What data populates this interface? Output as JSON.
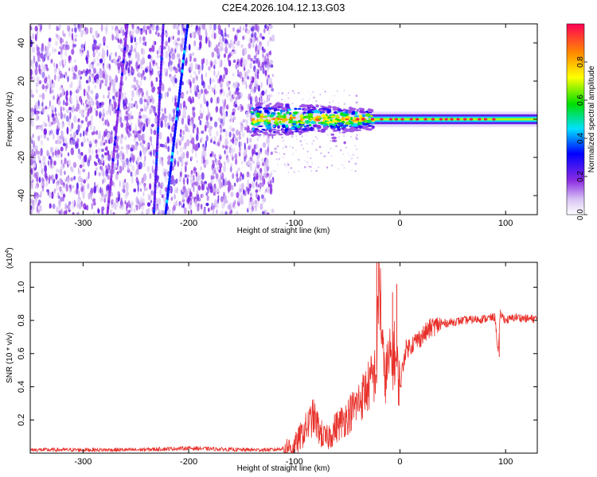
{
  "title": "C2E4.2026.104.12.13.G03",
  "chart_data": [
    {
      "type": "heatmap",
      "xlabel": "Height of straight line (km)",
      "ylabel": "Frequency (Hz)",
      "xlim": [
        -350,
        130
      ],
      "ylim": [
        -50,
        50
      ],
      "xticks": [
        -300,
        -200,
        -100,
        0,
        100
      ],
      "xtick_labels": [
        "-300",
        "-200",
        "-100",
        "0",
        "100"
      ],
      "yticks": [
        -40,
        -20,
        0,
        20,
        40
      ],
      "ytick_labels": [
        "-40",
        "-20",
        "0",
        "20",
        "40"
      ],
      "noise_region_x": [
        -350,
        -120
      ],
      "vertical_traces": [
        {
          "x_top": -258,
          "x_bottom": -277,
          "level": 0.15
        },
        {
          "x_top": -224,
          "x_bottom": -233,
          "level": 0.2
        },
        {
          "x_top": -201,
          "x_bottom": -222,
          "level": 0.3
        }
      ],
      "signal_band": {
        "x": [
          -140,
          130
        ],
        "center_hz": 0
      },
      "colorbar": {
        "label": "Normalized spectral amplitude",
        "range": [
          0,
          1
        ],
        "ticks": [
          0.0,
          0.2,
          0.4,
          0.6,
          0.8
        ],
        "tick_labels": [
          "0.0",
          "0.2",
          "0.4",
          "0.6",
          "0.8"
        ]
      }
    },
    {
      "type": "line",
      "xlabel": "Height of straight line (km)",
      "ylabel": "SNR (10 * v/v)",
      "multiplier": "(x10",
      "multiplier_exp": "4",
      "multiplier_close": ")",
      "xlim": [
        -350,
        130
      ],
      "ylim": [
        0,
        1.15
      ],
      "xticks": [
        -300,
        -200,
        -100,
        0,
        100
      ],
      "xtick_labels": [
        "-300",
        "-200",
        "-100",
        "0",
        "100"
      ],
      "yticks": [
        0.2,
        0.4,
        0.6,
        0.8,
        1.0
      ],
      "ytick_labels": [
        "0.2",
        "0.4",
        "0.6",
        "0.8",
        "1.0"
      ],
      "color": "#e8302a",
      "series": [
        {
          "name": "SNR",
          "x": [
            -350,
            -300,
            -250,
            -200,
            -150,
            -120,
            -100,
            -90,
            -82,
            -75,
            -70,
            -60,
            -50,
            -40,
            -30,
            -22,
            -20,
            -15,
            -10,
            -5,
            0,
            5,
            10,
            20,
            30,
            40,
            60,
            80,
            90,
            93,
            95,
            100,
            110,
            120,
            130
          ],
          "y": [
            0.02,
            0.02,
            0.02,
            0.03,
            0.02,
            0.02,
            0.04,
            0.14,
            0.22,
            0.12,
            0.08,
            0.16,
            0.22,
            0.3,
            0.4,
            0.5,
            1.12,
            0.45,
            0.55,
            0.6,
            0.4,
            0.62,
            0.65,
            0.7,
            0.76,
            0.78,
            0.8,
            0.81,
            0.82,
            0.6,
            0.84,
            0.8,
            0.82,
            0.81,
            0.81
          ]
        }
      ],
      "spikes": [
        {
          "x": -22,
          "y": 1.15
        },
        {
          "x": -3,
          "y": 1.02
        },
        {
          "x": -7,
          "y": 0.97
        },
        {
          "x": 94,
          "y": 0.58
        }
      ]
    }
  ]
}
